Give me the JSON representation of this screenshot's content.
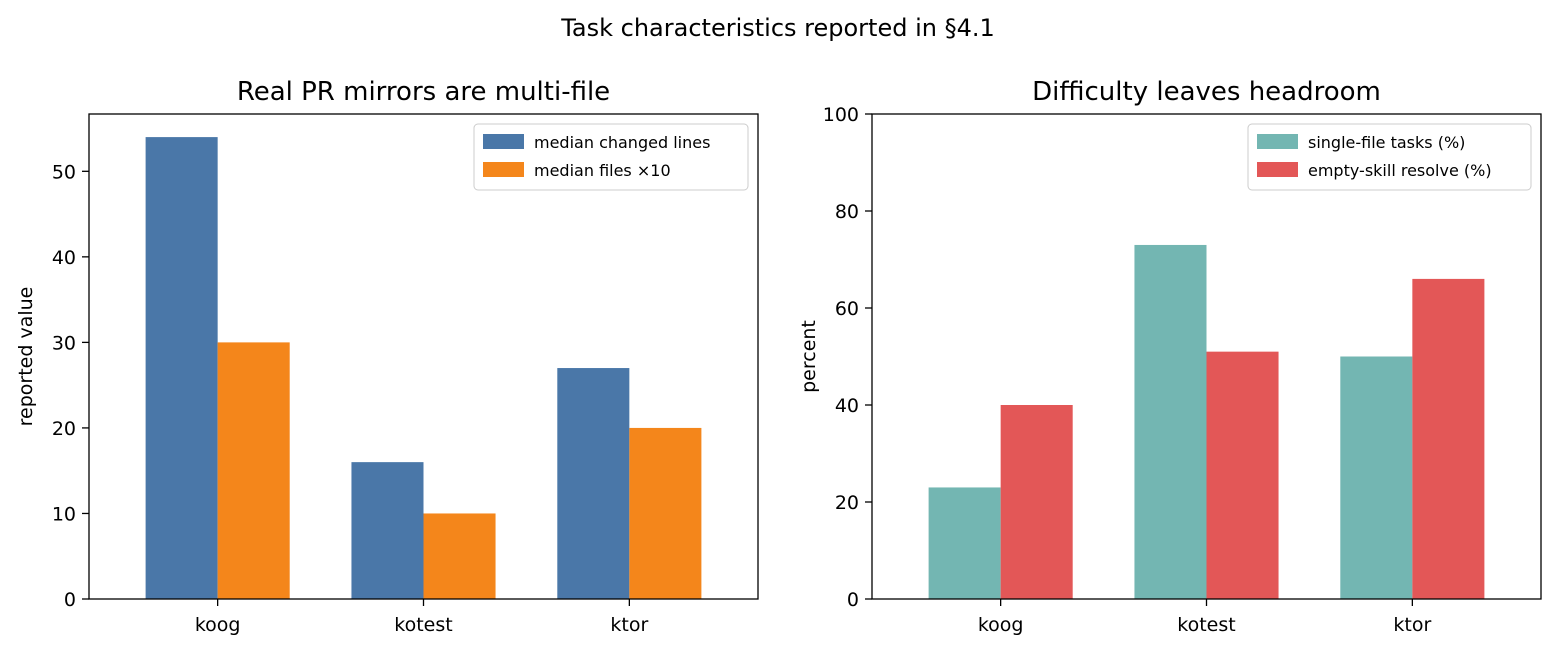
{
  "figure": {
    "suptitle": "Task characteristics reported in §4.1"
  },
  "chart_data": [
    {
      "type": "bar",
      "title": "Real PR mirrors are multi-file",
      "xlabel": "",
      "ylabel": "reported value",
      "categories": [
        "koog",
        "kotest",
        "ktor"
      ],
      "ylim": [
        0,
        56.7
      ],
      "yticks": [
        0,
        10,
        20,
        30,
        40,
        50
      ],
      "legend_position": "top-right",
      "grid": false,
      "series": [
        {
          "name": "median changed lines",
          "color": "#4a77a8",
          "values": [
            54,
            16,
            27
          ]
        },
        {
          "name": "median files ×10",
          "color": "#f4861b",
          "values": [
            30,
            10,
            20
          ]
        }
      ]
    },
    {
      "type": "bar",
      "title": "Difficulty leaves headroom",
      "xlabel": "",
      "ylabel": "percent",
      "categories": [
        "koog",
        "kotest",
        "ktor"
      ],
      "ylim": [
        0,
        100
      ],
      "yticks": [
        0,
        20,
        40,
        60,
        80,
        100
      ],
      "legend_position": "top-right",
      "grid": false,
      "series": [
        {
          "name": "single-file tasks (%)",
          "color": "#73b6b2",
          "values": [
            23,
            73,
            50
          ]
        },
        {
          "name": "empty-skill resolve (%)",
          "color": "#e35757",
          "values": [
            40,
            51,
            66
          ]
        }
      ]
    }
  ]
}
